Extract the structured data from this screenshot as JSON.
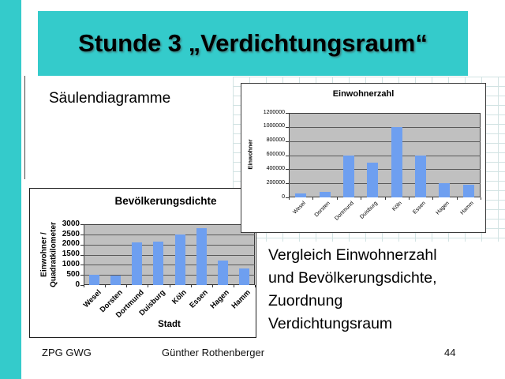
{
  "slide": {
    "title": "Stunde 3 „Verdichtungsraum“",
    "subtitle": "Säulendiagramme",
    "body_text": "Vergleich Einwohnerzahl\nund Bevölkerungsdichte,\nZuordnung\nVerdichtungsraum",
    "footer": {
      "left": "ZPG GWG",
      "center": "Günther Rothenberger",
      "page_number": "44"
    },
    "colors": {
      "accent_teal": "#34cbcb",
      "bar_blue": "#6e9ff0",
      "plot_gray": "#c0c0c0"
    }
  },
  "chart_data": [
    {
      "type": "bar",
      "title": "Einwohnerzahl",
      "ylabel": "Einwohner",
      "xlabel": "",
      "categories": [
        "Wesel",
        "Dorsten",
        "Dortmund",
        "Duisburg",
        "Köln",
        "Essen",
        "Hagen",
        "Hamm"
      ],
      "values": [
        60000,
        80000,
        590000,
        490000,
        1000000,
        590000,
        200000,
        180000
      ],
      "ylim": [
        0,
        1200000
      ],
      "yticks": [
        0,
        200000,
        400000,
        600000,
        800000,
        1000000,
        1200000
      ],
      "grid": true,
      "legend": "none",
      "bar_color": "#6e9ff0",
      "plot_bg": "#c0c0c0"
    },
    {
      "type": "bar",
      "title": "Bevölkerungsdichte",
      "ylabel": "Einwohner /\nQuadratkilometer",
      "xlabel": "Stadt",
      "categories": [
        "Wesel",
        "Dorsten",
        "Dortmund",
        "Duisburg",
        "Köln",
        "Essen",
        "Hagen",
        "Hamm"
      ],
      "values": [
        500,
        480,
        2100,
        2150,
        2500,
        2800,
        1200,
        800
      ],
      "ylim": [
        0,
        3000
      ],
      "yticks": [
        0,
        500,
        1000,
        1500,
        2000,
        2500,
        3000
      ],
      "grid": true,
      "legend": "none",
      "bar_color": "#6e9ff0",
      "plot_bg": "#c0c0c0"
    }
  ]
}
